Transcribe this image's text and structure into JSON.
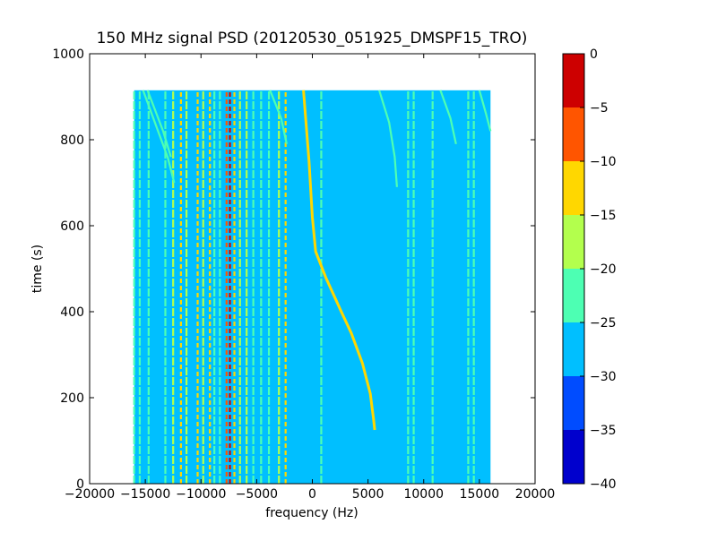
{
  "chart_data": {
    "type": "heatmap",
    "title": "150 MHz signal PSD (20120530_051925_DMSPF15_TRO)",
    "xlabel": "frequency (Hz)",
    "ylabel": "time (s)",
    "xlim": [
      -20000,
      20000
    ],
    "ylim": [
      0,
      1000
    ],
    "x_ticks": [
      "−20000",
      "−15000",
      "−10000",
      "−5000",
      "0",
      "5000",
      "10000",
      "15000",
      "20000"
    ],
    "y_ticks": [
      "0",
      "200",
      "400",
      "600",
      "800",
      "1000"
    ],
    "colorbar": {
      "levels": [
        -40,
        -35,
        -30,
        -25,
        -20,
        -15,
        -10,
        -5,
        0
      ],
      "tick_labels": [
        "−40",
        "−35",
        "−30",
        "−25",
        "−20",
        "−15",
        "−10",
        "−5",
        "0"
      ],
      "colors": [
        "#0000cd",
        "#004cff",
        "#00bfff",
        "#4dffb3",
        "#b3ff4d",
        "#ffd700",
        "#ff5500",
        "#cd0000"
      ]
    },
    "data_extent": {
      "freq": [
        -16000,
        16000
      ],
      "time": [
        0,
        915
      ]
    },
    "background_level_db": -27.5,
    "vertical_lines": [
      {
        "freq": -16000,
        "db": -22
      },
      {
        "freq": -15500,
        "db": -22
      },
      {
        "freq": -14700,
        "db": -22
      },
      {
        "freq": -13200,
        "db": -22
      },
      {
        "freq": -12500,
        "db": -17
      },
      {
        "freq": -11800,
        "db": -12
      },
      {
        "freq": -11300,
        "db": -17
      },
      {
        "freq": -10300,
        "db": -12
      },
      {
        "freq": -9800,
        "db": -17
      },
      {
        "freq": -9200,
        "db": -12
      },
      {
        "freq": -8800,
        "db": -22
      },
      {
        "freq": -8300,
        "db": -22
      },
      {
        "freq": -7700,
        "db": -7
      },
      {
        "freq": -7400,
        "db": -2
      },
      {
        "freq": -7000,
        "db": -12
      },
      {
        "freq": -6500,
        "db": -17
      },
      {
        "freq": -5900,
        "db": -17
      },
      {
        "freq": -5300,
        "db": -22
      },
      {
        "freq": -4600,
        "db": -22
      },
      {
        "freq": -3900,
        "db": -22
      },
      {
        "freq": -3000,
        "db": -17
      },
      {
        "freq": -2400,
        "db": -12
      },
      {
        "freq": 800,
        "db": -22
      },
      {
        "freq": 8600,
        "db": -22
      },
      {
        "freq": 9100,
        "db": -22
      },
      {
        "freq": 10800,
        "db": -22
      },
      {
        "freq": 14000,
        "db": -22
      },
      {
        "freq": 14500,
        "db": -22
      }
    ],
    "doppler_tracks": [
      {
        "db": -12,
        "points": [
          [
            -800,
            915
          ],
          [
            -300,
            750
          ],
          [
            0,
            620
          ],
          [
            300,
            540
          ],
          [
            1200,
            480
          ],
          [
            2600,
            400
          ],
          [
            3500,
            350
          ],
          [
            4500,
            280
          ],
          [
            5200,
            210
          ],
          [
            5500,
            150
          ],
          [
            5600,
            125
          ]
        ]
      },
      {
        "db": -22,
        "points": [
          [
            -15200,
            915
          ],
          [
            -14000,
            830
          ],
          [
            -13000,
            760
          ],
          [
            -12400,
            700
          ]
        ]
      },
      {
        "db": -22,
        "points": [
          [
            -14800,
            915
          ],
          [
            -13400,
            820
          ],
          [
            -12700,
            760
          ]
        ]
      },
      {
        "db": -22,
        "points": [
          [
            -3800,
            915
          ],
          [
            -2800,
            850
          ],
          [
            -2300,
            790
          ]
        ]
      },
      {
        "db": -22,
        "points": [
          [
            6000,
            915
          ],
          [
            6900,
            840
          ],
          [
            7400,
            760
          ],
          [
            7600,
            690
          ]
        ]
      },
      {
        "db": -22,
        "points": [
          [
            11500,
            915
          ],
          [
            12400,
            850
          ],
          [
            12900,
            790
          ]
        ]
      },
      {
        "db": -22,
        "points": [
          [
            15000,
            915
          ],
          [
            15600,
            860
          ],
          [
            16000,
            820
          ]
        ]
      }
    ]
  }
}
